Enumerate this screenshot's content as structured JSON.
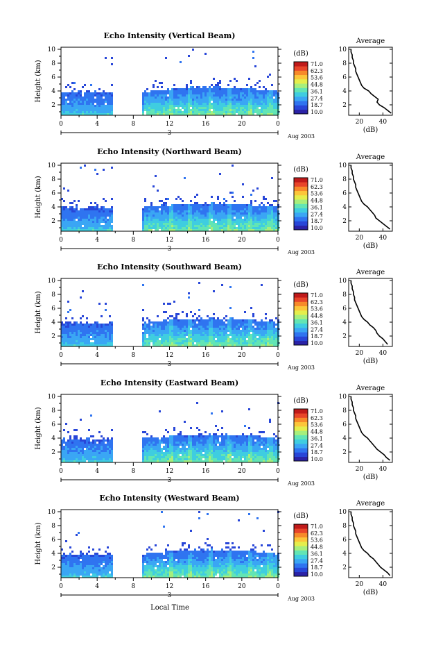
{
  "figure": {
    "xlabel": "Local Time",
    "date_label": "Aug 2003",
    "day_label": "3"
  },
  "colormap": [
    "#2b22a6",
    "#2846d8",
    "#2f74f0",
    "#3aa6f4",
    "#3fcde0",
    "#62e5b4",
    "#a7ef7c",
    "#e5ee4c",
    "#fcc63a",
    "#f78a2a",
    "#e8452a",
    "#c01a1a"
  ],
  "chart_data": [
    {
      "type": "heatmap",
      "title": "Echo Intensity (Vertical Beam)",
      "ylabel": "Height (km)",
      "x_ticks": [
        "0",
        "4",
        "8",
        "12",
        "16",
        "20",
        "0"
      ],
      "y_ticks": [
        "2",
        "4",
        "6",
        "8",
        "10"
      ],
      "xlim": [
        0,
        24
      ],
      "ylim": [
        0.5,
        10.3
      ],
      "data_gap_hours": [
        5.7,
        8.8
      ],
      "colorbar": {
        "unit": "(dB)",
        "labels": [
          "71.0",
          "62.3",
          "53.6",
          "44.8",
          "36.1",
          "27.4",
          "18.7",
          "10.0"
        ]
      },
      "profile": {
        "title": "Average",
        "xlabel": "(dB)",
        "x_ticks": [
          "20",
          "40"
        ],
        "xlim": [
          11,
          48
        ],
        "heights": [
          0.8,
          1.2,
          1.6,
          2.0,
          2.4,
          2.8,
          3.2,
          3.6,
          4.0,
          4.4,
          4.8,
          5.2,
          5.6,
          6.0,
          6.4,
          6.8,
          7.2,
          7.6,
          8.0,
          8.4,
          8.8,
          9.2,
          9.6,
          10.0
        ],
        "values": [
          47,
          44,
          41,
          37,
          35,
          36,
          33,
          30,
          28,
          24,
          22,
          21,
          20,
          19,
          18,
          17,
          17,
          16,
          15,
          15,
          14,
          14,
          13,
          13
        ]
      }
    },
    {
      "type": "heatmap",
      "title": "Echo Intensity (Northward Beam)",
      "ylabel": "Height (km)",
      "x_ticks": [
        "0",
        "4",
        "8",
        "12",
        "16",
        "20",
        "0"
      ],
      "y_ticks": [
        "2",
        "4",
        "6",
        "8",
        "10"
      ],
      "xlim": [
        0,
        24
      ],
      "ylim": [
        0.5,
        10.3
      ],
      "data_gap_hours": [
        5.7,
        8.8
      ],
      "colorbar": {
        "unit": "(dB)",
        "labels": [
          "71.0",
          "62.3",
          "53.6",
          "44.8",
          "36.1",
          "27.4",
          "18.7",
          "10.0"
        ]
      },
      "profile": {
        "title": "Average",
        "xlabel": "(dB)",
        "x_ticks": [
          "20",
          "40"
        ],
        "xlim": [
          11,
          48
        ],
        "heights": [
          0.8,
          1.2,
          1.6,
          2.0,
          2.4,
          2.8,
          3.2,
          3.6,
          4.0,
          4.4,
          4.8,
          5.2,
          5.6,
          6.0,
          6.4,
          6.8,
          7.2,
          7.6,
          8.0,
          8.4,
          8.8,
          9.2,
          9.6,
          10.0
        ],
        "values": [
          46,
          43,
          40,
          37,
          34,
          33,
          31,
          29,
          27,
          24,
          22,
          21,
          20,
          19,
          18,
          17,
          17,
          16,
          15,
          15,
          14,
          14,
          13,
          13
        ]
      }
    },
    {
      "type": "heatmap",
      "title": "Echo Intensity (Southward Beam)",
      "ylabel": "Height (km)",
      "x_ticks": [
        "0",
        "4",
        "8",
        "12",
        "16",
        "20",
        "0"
      ],
      "y_ticks": [
        "2",
        "4",
        "6",
        "8",
        "10"
      ],
      "xlim": [
        0,
        24
      ],
      "ylim": [
        0.5,
        10.3
      ],
      "data_gap_hours": [
        5.7,
        8.8
      ],
      "colorbar": {
        "unit": "(dB)",
        "labels": [
          "71.0",
          "62.3",
          "53.6",
          "44.8",
          "36.1",
          "27.4",
          "18.7",
          "10.0"
        ]
      },
      "profile": {
        "title": "Average",
        "xlabel": "(dB)",
        "x_ticks": [
          "20",
          "40"
        ],
        "xlim": [
          11,
          48
        ],
        "heights": [
          0.8,
          1.2,
          1.6,
          2.0,
          2.4,
          2.8,
          3.2,
          3.6,
          4.0,
          4.4,
          4.8,
          5.2,
          5.6,
          6.0,
          6.4,
          6.8,
          7.2,
          7.6,
          8.0,
          8.4,
          8.8,
          9.2,
          9.6,
          10.0
        ],
        "values": [
          44,
          42,
          40,
          37,
          35,
          34,
          32,
          29,
          27,
          24,
          22,
          21,
          20,
          19,
          18,
          17,
          16,
          16,
          15,
          15,
          14,
          14,
          13,
          13
        ]
      }
    },
    {
      "type": "heatmap",
      "title": "Echo Intensity (Eastward Beam)",
      "ylabel": "Height (km)",
      "x_ticks": [
        "0",
        "4",
        "8",
        "12",
        "16",
        "20",
        "0"
      ],
      "y_ticks": [
        "2",
        "4",
        "6",
        "8",
        "10"
      ],
      "xlim": [
        0,
        24
      ],
      "ylim": [
        0.5,
        10.3
      ],
      "data_gap_hours": [
        5.7,
        8.8
      ],
      "colorbar": {
        "unit": "(dB)",
        "labels": [
          "71.0",
          "62.3",
          "53.6",
          "44.8",
          "36.1",
          "27.4",
          "18.7",
          "10.0"
        ]
      },
      "profile": {
        "title": "Average",
        "xlabel": "(dB)",
        "x_ticks": [
          "20",
          "40"
        ],
        "xlim": [
          11,
          48
        ],
        "heights": [
          0.8,
          1.2,
          1.6,
          2.0,
          2.4,
          2.8,
          3.2,
          3.6,
          4.0,
          4.4,
          4.8,
          5.2,
          5.6,
          6.0,
          6.4,
          6.8,
          7.2,
          7.6,
          8.0,
          8.4,
          8.8,
          9.2,
          9.6,
          10.0
        ],
        "values": [
          46,
          43,
          41,
          38,
          35,
          33,
          31,
          29,
          27,
          24,
          22,
          21,
          20,
          19,
          18,
          17,
          17,
          16,
          15,
          15,
          14,
          14,
          13,
          13
        ]
      }
    },
    {
      "type": "heatmap",
      "title": "Echo Intensity (Westward Beam)",
      "ylabel": "Height (km)",
      "x_ticks": [
        "0",
        "4",
        "8",
        "12",
        "16",
        "20",
        "0"
      ],
      "y_ticks": [
        "2",
        "4",
        "6",
        "8",
        "10"
      ],
      "xlim": [
        0,
        24
      ],
      "ylim": [
        0.5,
        10.3
      ],
      "data_gap_hours": [
        5.7,
        8.8
      ],
      "colorbar": {
        "unit": "(dB)",
        "labels": [
          "71.0",
          "62.3",
          "53.6",
          "44.8",
          "36.1",
          "27.4",
          "18.7",
          "10.0"
        ]
      },
      "profile": {
        "title": "Average",
        "xlabel": "(dB)",
        "x_ticks": [
          "20",
          "40"
        ],
        "xlim": [
          11,
          48
        ],
        "heights": [
          0.8,
          1.2,
          1.6,
          2.0,
          2.4,
          2.8,
          3.2,
          3.6,
          4.0,
          4.4,
          4.8,
          5.2,
          5.6,
          6.0,
          6.4,
          6.8,
          7.2,
          7.6,
          8.0,
          8.4,
          8.8,
          9.2,
          9.6,
          10.0
        ],
        "values": [
          46,
          44,
          41,
          38,
          36,
          34,
          32,
          29,
          27,
          24,
          22,
          21,
          20,
          19,
          18,
          17,
          17,
          16,
          15,
          15,
          14,
          14,
          13,
          13
        ]
      }
    }
  ]
}
